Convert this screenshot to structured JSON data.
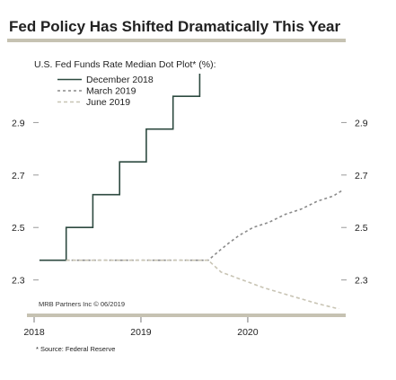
{
  "chart_data": {
    "type": "line",
    "title": "Fed Policy Has Shifted Dramatically This Year",
    "subtitle": "U.S. Fed Funds Rate Median Dot Plot* (%):",
    "credit": "MRB Partners Inc © 06/2019",
    "source": "* Source: Federal Reserve",
    "legend_position": "top-left",
    "grid": false,
    "xlim": [
      2018.0,
      2020.9
    ],
    "ylim": [
      2.22,
      3.1
    ],
    "x_ticks": [
      {
        "value": 2018,
        "label": "2018"
      },
      {
        "value": 2019,
        "label": "2019"
      },
      {
        "value": 2020,
        "label": "2020"
      }
    ],
    "y_ticks_left": [
      {
        "value": 2.3,
        "label": "2.3"
      },
      {
        "value": 2.5,
        "label": "2.5"
      },
      {
        "value": 2.7,
        "label": "2.7"
      },
      {
        "value": 2.9,
        "label": "2.9"
      }
    ],
    "y_ticks_right": [
      {
        "value": 2.3,
        "label": "2.3"
      },
      {
        "value": 2.5,
        "label": "2.5"
      },
      {
        "value": 2.7,
        "label": "2.7"
      },
      {
        "value": 2.9,
        "label": "2.9"
      }
    ],
    "series": [
      {
        "name": "December 2018",
        "color": "#2e4a40",
        "style": "solid",
        "points": [
          [
            2018.05,
            2.375
          ],
          [
            2018.3,
            2.375
          ],
          [
            2018.3,
            2.5
          ],
          [
            2018.55,
            2.5
          ],
          [
            2018.55,
            2.625
          ],
          [
            2018.8,
            2.625
          ],
          [
            2018.8,
            2.75
          ],
          [
            2019.05,
            2.75
          ],
          [
            2019.05,
            2.875
          ],
          [
            2019.3,
            2.875
          ],
          [
            2019.3,
            3.0
          ],
          [
            2019.55,
            3.0
          ],
          [
            2019.55,
            3.125
          ],
          [
            2019.8,
            3.125
          ],
          [
            2019.8,
            3.25
          ],
          [
            2020.05,
            3.25
          ],
          [
            2020.05,
            3.375
          ],
          [
            2020.35,
            3.375
          ],
          [
            2020.35,
            3.5
          ],
          [
            2020.6,
            3.5
          ],
          [
            2020.6,
            3.625
          ],
          [
            2020.8,
            3.625
          ],
          [
            2020.88,
            3.72
          ]
        ]
      },
      {
        "name": "March 2019",
        "color": "#8a8a8a",
        "style": "dashed",
        "points": [
          [
            2018.3,
            2.375
          ],
          [
            2019.63,
            2.375
          ],
          [
            2019.73,
            2.41
          ],
          [
            2019.82,
            2.44
          ],
          [
            2019.92,
            2.47
          ],
          [
            2020.05,
            2.5
          ],
          [
            2020.2,
            2.52
          ],
          [
            2020.35,
            2.55
          ],
          [
            2020.5,
            2.57
          ],
          [
            2020.65,
            2.6
          ],
          [
            2020.8,
            2.62
          ],
          [
            2020.88,
            2.64
          ]
        ]
      },
      {
        "name": "June 2019",
        "color": "#c8c4b4",
        "style": "dashed",
        "points": [
          [
            2018.3,
            2.375
          ],
          [
            2019.63,
            2.375
          ],
          [
            2019.75,
            2.33
          ],
          [
            2019.95,
            2.3
          ],
          [
            2020.15,
            2.27
          ],
          [
            2020.4,
            2.24
          ],
          [
            2020.65,
            2.21
          ],
          [
            2020.85,
            2.19
          ],
          [
            2020.88,
            2.17
          ]
        ]
      }
    ]
  }
}
